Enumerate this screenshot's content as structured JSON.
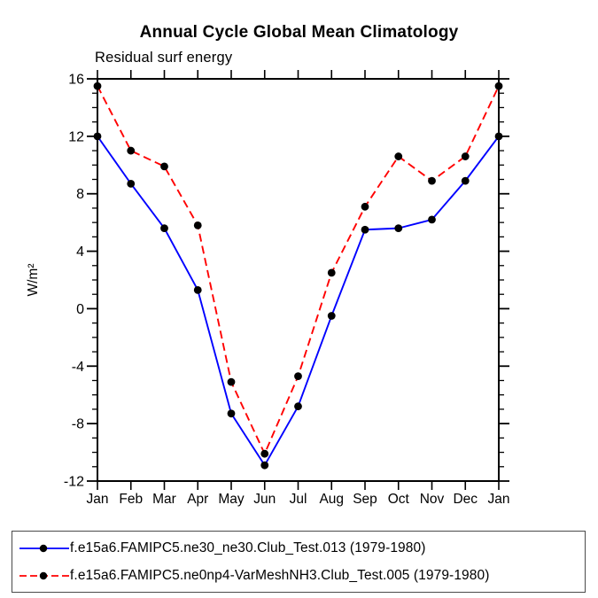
{
  "chart": {
    "title": "Annual Cycle Global Mean Climatology",
    "subtitle": "Residual surf energy"
  },
  "chart_data": {
    "type": "line",
    "title": "Annual Cycle Global Mean Climatology",
    "subtitle": "Residual surf energy",
    "xlabel": "",
    "ylabel": "W/m²",
    "x_labels": [
      "Jan",
      "Feb",
      "Mar",
      "Apr",
      "May",
      "Jun",
      "Jul",
      "Aug",
      "Sep",
      "Oct",
      "Nov",
      "Dec",
      "Jan"
    ],
    "ylim": [
      -12,
      16
    ],
    "y_major_ticks": [
      16,
      12,
      8,
      4,
      0,
      -4,
      -8,
      -12
    ],
    "y_minor_step": 1,
    "grid": false,
    "legend_position": "bottom",
    "marker_color": "#000000",
    "axis_color": "#000000",
    "series": [
      {
        "name": "f.e15a6.FAMIPC5.ne30_ne30.Club_Test.013 (1979-1980)",
        "color": "#0000ff",
        "style": "solid",
        "values": [
          12.0,
          8.7,
          5.6,
          1.3,
          -7.3,
          -10.9,
          -6.8,
          -0.5,
          5.5,
          5.6,
          6.2,
          8.9,
          12.0
        ]
      },
      {
        "name": "f.e15a6.FAMIPC5.ne0np4-VarMeshNH3.Club_Test.005 (1979-1980)",
        "color": "#ff0000",
        "style": "dashed",
        "values": [
          15.5,
          11.0,
          9.9,
          5.8,
          -5.1,
          -10.1,
          -4.7,
          2.5,
          7.1,
          10.6,
          8.9,
          10.6,
          15.5
        ]
      }
    ]
  }
}
